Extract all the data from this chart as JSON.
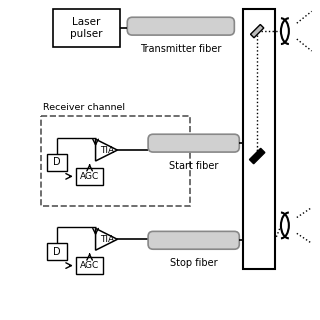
{
  "bg_color": "#ffffff",
  "line_color": "#000000",
  "gray_color": "#aaaaaa",
  "dashed_box_color": "#555555",
  "fiber_fill": "#d0d0d0",
  "fiber_edge": "#888888",
  "title_text": "Receiver channel",
  "laser_label": "Laser\npulser",
  "transmitter_label": "Transmitter fiber",
  "start_label": "Start fiber",
  "stop_label": "Stop fiber",
  "tia_label": "TIA",
  "agc_label": "AGC",
  "d_label": "D"
}
